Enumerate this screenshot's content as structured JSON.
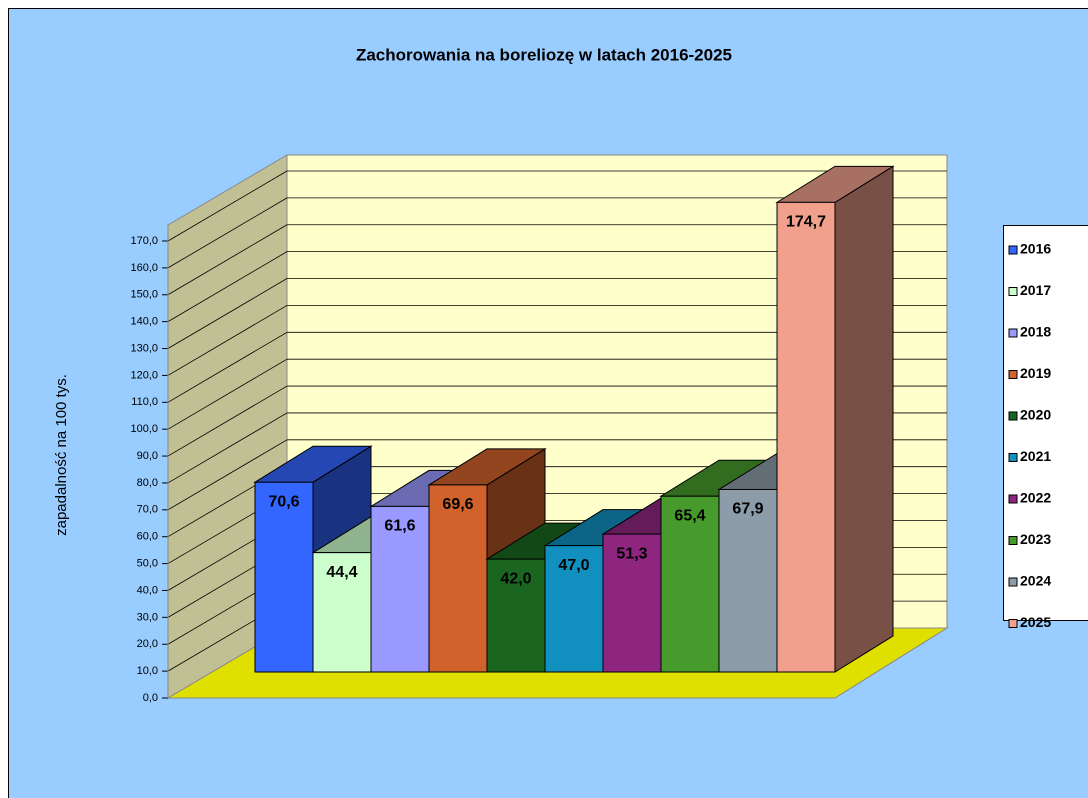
{
  "chart_data": {
    "type": "bar3d",
    "title": "Zachorowania na boreliozę w latach 2016-2025",
    "y_label": "zapadalność na 100 tys.",
    "categories": [
      "2016",
      "2017",
      "2018",
      "2019",
      "2020",
      "2021",
      "2022",
      "2023",
      "2024",
      "2025"
    ],
    "values": [
      70.6,
      44.4,
      61.6,
      69.6,
      42.0,
      47.0,
      51.3,
      65.4,
      67.9,
      174.7
    ],
    "value_labels": [
      "70,6",
      "44,4",
      "61,6",
      "69,6",
      "42,0",
      "47,0",
      "51,3",
      "65,4",
      "67,9",
      "174,7"
    ],
    "colors": [
      "#3366ff",
      "#ccffcc",
      "#9999ff",
      "#d2622c",
      "#1a6620",
      "#1190c0",
      "#8e2680",
      "#479a2c",
      "#8c9ca8",
      "#f0a08c"
    ],
    "ylim": [
      0,
      170
    ],
    "yticks": [
      {
        "value": 0,
        "label": "0,0"
      },
      {
        "value": 10,
        "label": "10,0"
      },
      {
        "value": 20,
        "label": "20,0"
      },
      {
        "value": 30,
        "label": "30,0"
      },
      {
        "value": 40,
        "label": "40,0"
      },
      {
        "value": 50,
        "label": "50,0"
      },
      {
        "value": 60,
        "label": "60,0"
      },
      {
        "value": 70,
        "label": "70,0"
      },
      {
        "value": 80,
        "label": "80,0"
      },
      {
        "value": 90,
        "label": "90,0"
      },
      {
        "value": 100,
        "label": "100,0"
      },
      {
        "value": 110,
        "label": "110,0"
      },
      {
        "value": 120,
        "label": "120,0"
      },
      {
        "value": 130,
        "label": "130,0"
      },
      {
        "value": 140,
        "label": "140,0"
      },
      {
        "value": 150,
        "label": "150,0"
      },
      {
        "value": 160,
        "label": "160,0"
      },
      {
        "value": 170,
        "label": "170,0"
      }
    ],
    "grid": true,
    "legend": "right"
  }
}
